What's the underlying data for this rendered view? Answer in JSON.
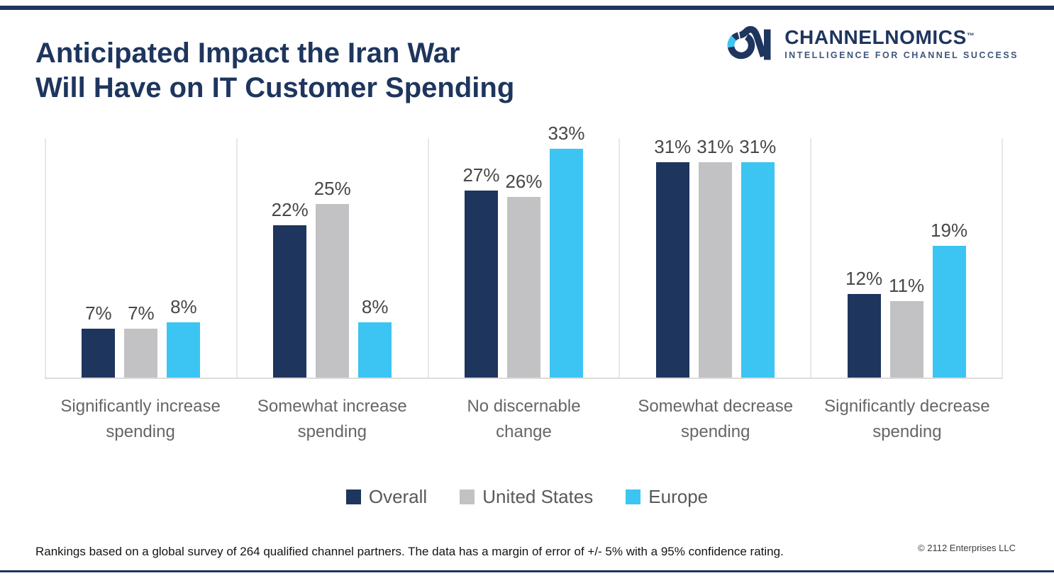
{
  "header": {
    "title": "Anticipated Impact the Iran War\nWill Have on IT Customer Spending",
    "accent_color": "#1e355e"
  },
  "logo": {
    "name": "CHANNELNOMICS",
    "trademark": "™",
    "tagline": "INTELLIGENCE FOR CHANNEL SUCCESS",
    "navy": "#1e355e",
    "cyan": "#3cc5f2"
  },
  "chart_data": {
    "type": "bar",
    "title": "Anticipated Impact the Iran War Will Have on IT Customer Spending",
    "categories": [
      "Significantly increase\nspending",
      "Somewhat increase\nspending",
      "No discernable\nchange",
      "Somewhat decrease\nspending",
      "Significantly decrease\nspending"
    ],
    "series": [
      {
        "name": "Overall",
        "color": "#1e355e",
        "values": [
          7,
          22,
          27,
          31,
          12
        ]
      },
      {
        "name": "United States",
        "color": "#c2c2c4",
        "values": [
          7,
          25,
          26,
          31,
          11
        ]
      },
      {
        "name": "Europe",
        "color": "#3cc5f2",
        "values": [
          8,
          8,
          33,
          31,
          19
        ]
      }
    ],
    "value_suffix": "%",
    "value_labels": true,
    "ylim": [
      0,
      34.5
    ],
    "y_axis_visible": false,
    "grid": "vertical-panel-dividers",
    "legend_position": "bottom"
  },
  "footer": {
    "note": "Rankings based on a global survey of 264 qualified channel partners. The data has a margin of error of +/- 5% with a 95% confidence rating.",
    "copyright": "© 2112 Enterprises LLC"
  }
}
